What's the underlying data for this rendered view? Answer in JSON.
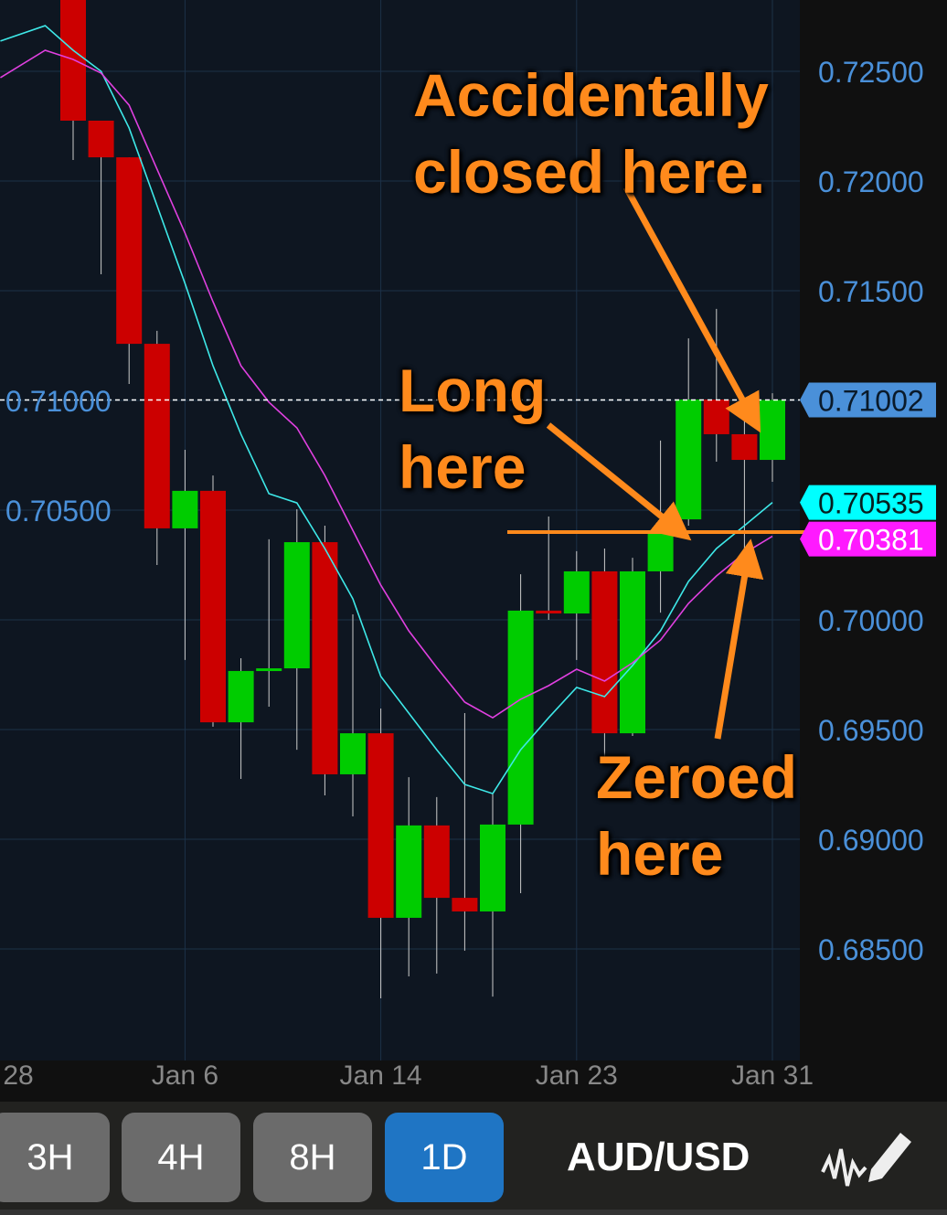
{
  "chart_data": {
    "type": "candlestick",
    "symbol": "AUD/USD",
    "ylim": [
      0.682,
      0.7292
    ],
    "y_ticks": [
      "0.68500",
      "0.69000",
      "0.69500",
      "0.70000",
      "0.70500",
      "0.71000",
      "0.71500",
      "0.72000",
      "0.72500"
    ],
    "x_ticks": [
      {
        "label": "28",
        "index": -2
      },
      {
        "label": "Jan 6",
        "index": 4
      },
      {
        "label": "Jan 14",
        "index": 11
      },
      {
        "label": "Jan 23",
        "index": 18
      },
      {
        "label": "Jan 31",
        "index": 25
      }
    ],
    "grid": true,
    "candles": [
      {
        "o": 0.72867,
        "h": 0.72867,
        "l": 0.72096,
        "c": 0.72275
      },
      {
        "o": 0.72275,
        "h": 0.72275,
        "l": 0.71575,
        "c": 0.72108
      },
      {
        "o": 0.72108,
        "h": 0.72108,
        "l": 0.71075,
        "c": 0.71258
      },
      {
        "o": 0.71258,
        "h": 0.71317,
        "l": 0.7025,
        "c": 0.70417
      },
      {
        "o": 0.70417,
        "h": 0.70775,
        "l": 0.69817,
        "c": 0.70588
      },
      {
        "o": 0.70588,
        "h": 0.70658,
        "l": 0.69513,
        "c": 0.69533
      },
      {
        "o": 0.69533,
        "h": 0.69825,
        "l": 0.69275,
        "c": 0.69767
      },
      {
        "o": 0.69767,
        "h": 0.70367,
        "l": 0.69604,
        "c": 0.69779
      },
      {
        "o": 0.69779,
        "h": 0.70504,
        "l": 0.69408,
        "c": 0.70354
      },
      {
        "o": 0.70354,
        "h": 0.70429,
        "l": 0.692,
        "c": 0.69296
      },
      {
        "o": 0.69296,
        "h": 0.70025,
        "l": 0.69104,
        "c": 0.69483
      },
      {
        "o": 0.69483,
        "h": 0.69596,
        "l": 0.68275,
        "c": 0.68642
      },
      {
        "o": 0.68642,
        "h": 0.69283,
        "l": 0.68375,
        "c": 0.69063
      },
      {
        "o": 0.69063,
        "h": 0.69192,
        "l": 0.68388,
        "c": 0.68733
      },
      {
        "o": 0.68733,
        "h": 0.69575,
        "l": 0.68492,
        "c": 0.68671
      },
      {
        "o": 0.68671,
        "h": 0.69208,
        "l": 0.68283,
        "c": 0.69067
      },
      {
        "o": 0.69067,
        "h": 0.70208,
        "l": 0.68754,
        "c": 0.70042
      },
      {
        "o": 0.70042,
        "h": 0.70471,
        "l": 0.7,
        "c": 0.70029
      },
      {
        "o": 0.70029,
        "h": 0.70313,
        "l": 0.69817,
        "c": 0.70221
      },
      {
        "o": 0.70221,
        "h": 0.70325,
        "l": 0.69346,
        "c": 0.69483
      },
      {
        "o": 0.69483,
        "h": 0.70283,
        "l": 0.69471,
        "c": 0.70221
      },
      {
        "o": 0.70221,
        "h": 0.70817,
        "l": 0.70033,
        "c": 0.70396
      },
      {
        "o": 0.70458,
        "h": 0.71283,
        "l": 0.70429,
        "c": 0.71004
      },
      {
        "o": 0.71004,
        "h": 0.71417,
        "l": 0.70721,
        "c": 0.70846
      },
      {
        "o": 0.70846,
        "h": 0.70992,
        "l": 0.70283,
        "c": 0.70729
      },
      {
        "o": 0.70729,
        "h": 0.71033,
        "l": 0.70629,
        "c": 0.71002
      }
    ],
    "series": [
      {
        "color": "#3ee8e8",
        "index": [
          -2.6,
          -1,
          0,
          1,
          2,
          3,
          4,
          5,
          6,
          7,
          8,
          9,
          10,
          11,
          12,
          13,
          14,
          15,
          16,
          17,
          18,
          19,
          20,
          21,
          22,
          23,
          24,
          25
        ],
        "values": [
          0.72638,
          0.72708,
          0.72596,
          0.725,
          0.72242,
          0.71888,
          0.71533,
          0.71158,
          0.70846,
          0.70575,
          0.70533,
          0.70325,
          0.70096,
          0.69742,
          0.69575,
          0.69408,
          0.6925,
          0.69208,
          0.69408,
          0.69554,
          0.69692,
          0.6965,
          0.69792,
          0.6995,
          0.70175,
          0.70325,
          0.70429,
          0.70535
        ]
      },
      {
        "color": "#e040e0",
        "index": [
          -2.6,
          -1,
          0,
          1,
          2,
          3,
          4,
          5,
          6,
          7,
          8,
          9,
          10,
          11,
          12,
          13,
          14,
          15,
          16,
          17,
          18,
          19,
          20,
          21,
          22,
          23,
          24,
          25
        ],
        "values": [
          0.72471,
          0.72596,
          0.72554,
          0.72492,
          0.72346,
          0.72054,
          0.71763,
          0.7145,
          0.71158,
          0.70992,
          0.70875,
          0.70658,
          0.70408,
          0.70158,
          0.6995,
          0.69783,
          0.69625,
          0.69554,
          0.69638,
          0.697,
          0.69775,
          0.69721,
          0.69804,
          0.69908,
          0.70075,
          0.702,
          0.70304,
          0.70381
        ]
      }
    ],
    "price_labels": [
      {
        "text": "0.71002",
        "value": 0.71002,
        "bg": "#4a90d9",
        "fg": "#0a1a2a"
      },
      {
        "text": "0.70535",
        "value": 0.70535,
        "bg": "#00ffff",
        "fg": "#062020"
      },
      {
        "text": "0.70381",
        "value": 0.70381,
        "bg": "#ff1aff",
        "fg": "#ffffff"
      }
    ],
    "horizontal_line": {
      "value": 0.704,
      "color": "#ff8a1c"
    },
    "colors": {
      "up": "#00cc00",
      "down": "#cc0000",
      "background": "#0e1621",
      "grid": "#1c3148",
      "axis_text": "#4a90d9"
    }
  },
  "annotations": {
    "closed": "Accidentally\nclosed here.",
    "long": "Long\nhere",
    "zeroed": "Zeroed\nhere"
  },
  "toolbar": {
    "timeframes": [
      {
        "label": "3H"
      },
      {
        "label": "4H"
      },
      {
        "label": "8H"
      },
      {
        "label": "1D",
        "active": true
      }
    ],
    "symbol": "AUD/USD",
    "draw_icon": "chart-draw-pencil-icon"
  }
}
